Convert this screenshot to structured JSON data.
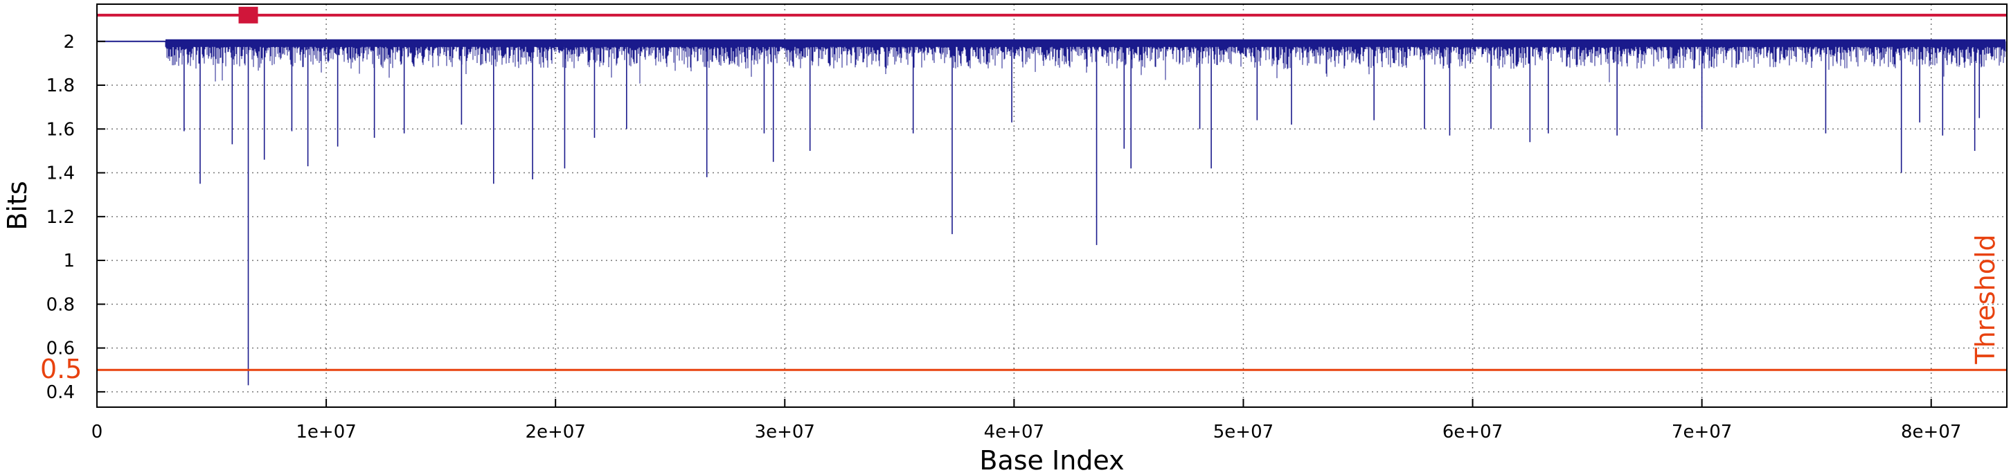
{
  "chart_data": {
    "type": "line",
    "title": "",
    "xlabel": "Base Index",
    "ylabel": "Bits",
    "xlim": [
      0,
      83300000
    ],
    "ylim": [
      0.33,
      2.17
    ],
    "grid": true,
    "x_ticks": [
      {
        "value": 0,
        "label": "0"
      },
      {
        "value": 10000000,
        "label": "1e+07"
      },
      {
        "value": 20000000,
        "label": "2e+07"
      },
      {
        "value": 30000000,
        "label": "3e+07"
      },
      {
        "value": 40000000,
        "label": "4e+07"
      },
      {
        "value": 50000000,
        "label": "5e+07"
      },
      {
        "value": 60000000,
        "label": "6e+07"
      },
      {
        "value": 70000000,
        "label": "7e+07"
      },
      {
        "value": 80000000,
        "label": "8e+07"
      }
    ],
    "y_ticks": [
      {
        "value": 0.4,
        "label": "0.4"
      },
      {
        "value": 0.6,
        "label": "0.6"
      },
      {
        "value": 0.8,
        "label": "0.8"
      },
      {
        "value": 1.0,
        "label": "1"
      },
      {
        "value": 1.2,
        "label": "1.2"
      },
      {
        "value": 1.4,
        "label": "1.4"
      },
      {
        "value": 1.6,
        "label": "1.6"
      },
      {
        "value": 1.8,
        "label": "1.8"
      },
      {
        "value": 2.0,
        "label": "2"
      }
    ],
    "series": [
      {
        "name": "Bits",
        "color": "#1a1a8c",
        "baseline": 2.0,
        "flat_until": 3000000,
        "noise_floor": 1.9,
        "dips": [
          [
            3800000,
            1.59
          ],
          [
            4500000,
            1.35
          ],
          [
            5900000,
            1.53
          ],
          [
            6600000,
            0.43
          ],
          [
            7300000,
            1.46
          ],
          [
            8500000,
            1.59
          ],
          [
            9200000,
            1.43
          ],
          [
            10500000,
            1.52
          ],
          [
            12100000,
            1.56
          ],
          [
            13400000,
            1.58
          ],
          [
            15900000,
            1.62
          ],
          [
            17300000,
            1.35
          ],
          [
            19000000,
            1.37
          ],
          [
            20400000,
            1.42
          ],
          [
            21700000,
            1.56
          ],
          [
            23100000,
            1.6
          ],
          [
            26600000,
            1.38
          ],
          [
            29100000,
            1.58
          ],
          [
            29500000,
            1.45
          ],
          [
            31100000,
            1.5
          ],
          [
            35600000,
            1.58
          ],
          [
            37300000,
            1.12
          ],
          [
            39900000,
            1.63
          ],
          [
            43600000,
            1.07
          ],
          [
            44800000,
            1.51
          ],
          [
            45100000,
            1.42
          ],
          [
            48100000,
            1.6
          ],
          [
            48600000,
            1.42
          ],
          [
            50600000,
            1.64
          ],
          [
            52100000,
            1.62
          ],
          [
            55700000,
            1.64
          ],
          [
            57900000,
            1.6
          ],
          [
            59000000,
            1.57
          ],
          [
            60800000,
            1.6
          ],
          [
            62500000,
            1.54
          ],
          [
            63300000,
            1.58
          ],
          [
            66300000,
            1.57
          ],
          [
            70000000,
            1.6
          ],
          [
            75400000,
            1.58
          ],
          [
            78700000,
            1.4
          ],
          [
            79500000,
            1.63
          ],
          [
            80500000,
            1.57
          ],
          [
            81900000,
            1.5
          ],
          [
            82100000,
            1.65
          ]
        ]
      }
    ],
    "reference_lines": [
      {
        "name": "Threshold",
        "value": 0.5,
        "label": "0.5",
        "color": "#e8420f"
      },
      {
        "name": "Top marker",
        "value": 2.12,
        "color": "#d0163a",
        "marker_x": 6600000
      }
    ],
    "annotation": {
      "text": "Threshold",
      "color": "#e8420f"
    }
  }
}
